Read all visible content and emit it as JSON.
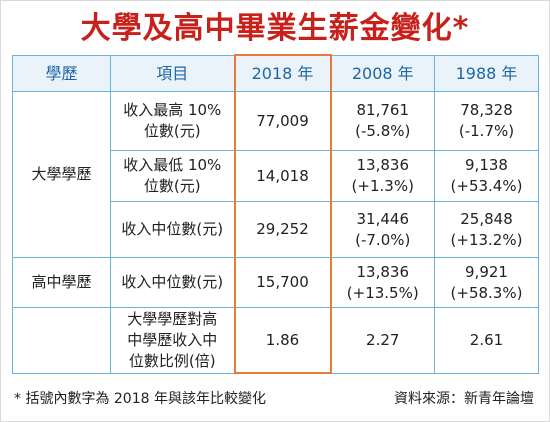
{
  "title": "大學及高中畢業生薪金變化*",
  "headers": {
    "education": "學歷",
    "item": "項目",
    "y2018": "2018 年",
    "y2008": "2008 年",
    "y1988": "1988 年"
  },
  "groups": {
    "university": "大學學歷",
    "highschool": "高中學歷"
  },
  "rows": [
    {
      "item_line1": "收入最高 10%",
      "item_line2": "位數(元)",
      "y2018": "77,009",
      "y2008_value": "81,761",
      "y2008_change": "(-5.8%)",
      "y1988_value": "78,328",
      "y1988_change": "(-1.7%)"
    },
    {
      "item_line1": "收入最低 10%",
      "item_line2": "位數(元)",
      "y2018": "14,018",
      "y2008_value": "13,836",
      "y2008_change": "(+1.3%)",
      "y1988_value": "9,138",
      "y1988_change": "(+53.4%)"
    },
    {
      "item_line1": "收入中位數(元)",
      "y2018": "29,252",
      "y2008_value": "31,446",
      "y2008_change": "(-7.0%)",
      "y1988_value": "25,848",
      "y1988_change": "(+13.2%)"
    },
    {
      "item_line1": "收入中位數(元)",
      "y2018": "15,700",
      "y2008_value": "13,836",
      "y2008_change": "(+13.5%)",
      "y1988_value": "9,921",
      "y1988_change": "(+58.3%)"
    },
    {
      "item_line1": "大學學歷對高",
      "item_line2": "中學歷收入中",
      "item_line3": "位數比例(倍)",
      "y2018": "1.86",
      "y2008": "2.27",
      "y1988": "2.61"
    }
  ],
  "footer": {
    "note": "* 括號內數字為 2018 年與該年比較變化",
    "source": "資料來源：新青年論壇"
  },
  "colors": {
    "title": "#c8201b",
    "header_text": "#1f66a8",
    "header_bg": "#e9f3f9",
    "grid": "#6bb4d8",
    "highlight_2018": "#e47b3c"
  }
}
